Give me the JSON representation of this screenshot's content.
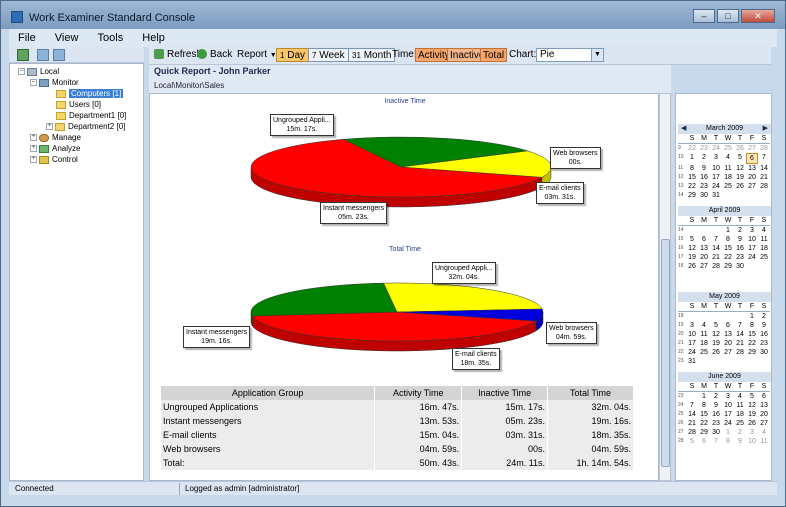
{
  "window": {
    "title": "Work Examiner Standard Console"
  },
  "menu": [
    "File",
    "View",
    "Tools",
    "Help"
  ],
  "tree": {
    "local": "Local",
    "monitor": "Monitor",
    "computers": "Computers [1]",
    "users": "Users [0]",
    "department1": "Department1 [0]",
    "department2": "Department2 [0]",
    "manage": "Manage",
    "analyze": "Analyze",
    "control": "Control"
  },
  "toolbar": {
    "refresh": "Refresh",
    "back": "Back",
    "report": "Report",
    "day": "Day",
    "week": "Week",
    "month": "Month",
    "time_label": "Time:",
    "activity": "Activity",
    "inactive": "Inactive",
    "total": "Total",
    "chart_label": "Chart:",
    "chart_value": "Pie"
  },
  "report": {
    "title": "Quick Report - John Parker",
    "path": "Local\\Monitor\\Sales"
  },
  "chart_data": [
    {
      "type": "pie",
      "title": "Inactive Time",
      "categories": [
        "Ungrouped Applications",
        "Instant messengers",
        "E-mail clients",
        "Web browsers"
      ],
      "values": [
        917,
        323,
        211,
        0
      ],
      "labels": [
        {
          "name": "Ungrouped Appli...",
          "value": "15m. 17s."
        },
        {
          "name": "Instant messengers",
          "value": "05m. 23s."
        },
        {
          "name": "E-mail clients",
          "value": "03m. 31s."
        },
        {
          "name": "Web browsers",
          "value": "00s."
        }
      ],
      "colors": [
        "#ff0000",
        "#008000",
        "#ffff00",
        "#0000dd"
      ]
    },
    {
      "type": "pie",
      "title": "Total Time",
      "categories": [
        "Ungrouped Applications",
        "Instant messengers",
        "E-mail clients",
        "Web browsers"
      ],
      "values": [
        1924,
        1156,
        1115,
        299
      ],
      "labels": [
        {
          "name": "Ungrouped Appli...",
          "value": "32m. 04s."
        },
        {
          "name": "Instant messengers",
          "value": "19m. 16s."
        },
        {
          "name": "E-mail clients",
          "value": "18m. 35s."
        },
        {
          "name": "Web browsers",
          "value": "04m. 59s."
        }
      ],
      "colors": [
        "#ff0000",
        "#008000",
        "#ffff00",
        "#0000dd"
      ]
    }
  ],
  "table": {
    "headers": [
      "Application Group",
      "Activity Time",
      "Inactive Time",
      "Total Time"
    ],
    "rows": [
      [
        "Ungrouped Applications",
        "16m. 47s.",
        "15m. 17s.",
        "32m. 04s."
      ],
      [
        "Instant messengers",
        "13m. 53s.",
        "05m. 23s.",
        "19m. 16s."
      ],
      [
        "E-mail clients",
        "15m. 04s.",
        "03m. 31s.",
        "18m. 35s."
      ],
      [
        "Web browsers",
        "04m. 59s.",
        "00s.",
        "04m. 59s."
      ],
      [
        "Total:",
        "50m. 43s.",
        "24m. 11s.",
        "1h. 14m. 54s."
      ]
    ]
  },
  "calendar": {
    "day_headers": [
      "S",
      "M",
      "T",
      "W",
      "T",
      "F",
      "S"
    ],
    "months": [
      {
        "name": "March 2009",
        "weeks": [
          {
            "wk": "9",
            "days": [
              "22",
              "23",
              "24",
              "25",
              "26",
              "27",
              "28"
            ],
            "gray": [
              0,
              1,
              2,
              3,
              4,
              5,
              6
            ]
          },
          {
            "wk": "10",
            "days": [
              "1",
              "2",
              "3",
              "4",
              "5",
              "6",
              "7"
            ],
            "gray": []
          },
          {
            "wk": "11",
            "days": [
              "8",
              "9",
              "10",
              "11",
              "12",
              "13",
              "14"
            ],
            "gray": []
          },
          {
            "wk": "12",
            "days": [
              "15",
              "16",
              "17",
              "18",
              "19",
              "20",
              "21"
            ],
            "gray": []
          },
          {
            "wk": "13",
            "days": [
              "22",
              "23",
              "24",
              "25",
              "26",
              "27",
              "28"
            ],
            "gray": []
          },
          {
            "wk": "14",
            "days": [
              "29",
              "30",
              "31",
              "",
              "",
              "",
              ""
            ],
            "gray": []
          }
        ],
        "today": "6"
      },
      {
        "name": "April 2009",
        "weeks": [
          {
            "wk": "14",
            "days": [
              "",
              "",
              "",
              "1",
              "2",
              "3",
              "4"
            ],
            "gray": []
          },
          {
            "wk": "15",
            "days": [
              "5",
              "6",
              "7",
              "8",
              "9",
              "10",
              "11"
            ],
            "gray": []
          },
          {
            "wk": "16",
            "days": [
              "12",
              "13",
              "14",
              "15",
              "16",
              "17",
              "18"
            ],
            "gray": []
          },
          {
            "wk": "17",
            "days": [
              "19",
              "20",
              "21",
              "22",
              "23",
              "24",
              "25"
            ],
            "gray": []
          },
          {
            "wk": "18",
            "days": [
              "26",
              "27",
              "28",
              "29",
              "30",
              "",
              ""
            ],
            "gray": []
          }
        ]
      },
      {
        "name": "May 2009",
        "weeks": [
          {
            "wk": "18",
            "days": [
              "",
              "",
              "",
              "",
              "",
              "1",
              "2"
            ],
            "gray": []
          },
          {
            "wk": "19",
            "days": [
              "3",
              "4",
              "5",
              "6",
              "7",
              "8",
              "9"
            ],
            "gray": []
          },
          {
            "wk": "20",
            "days": [
              "10",
              "11",
              "12",
              "13",
              "14",
              "15",
              "16"
            ],
            "gray": []
          },
          {
            "wk": "21",
            "days": [
              "17",
              "18",
              "19",
              "20",
              "21",
              "22",
              "23"
            ],
            "gray": []
          },
          {
            "wk": "22",
            "days": [
              "24",
              "25",
              "26",
              "27",
              "28",
              "29",
              "30"
            ],
            "gray": []
          },
          {
            "wk": "23",
            "days": [
              "31",
              "",
              "",
              "",
              "",
              "",
              ""
            ],
            "gray": []
          }
        ]
      },
      {
        "name": "June 2009",
        "weeks": [
          {
            "wk": "23",
            "days": [
              "",
              "1",
              "2",
              "3",
              "4",
              "5",
              "6"
            ],
            "gray": []
          },
          {
            "wk": "24",
            "days": [
              "7",
              "8",
              "9",
              "10",
              "11",
              "12",
              "13"
            ],
            "gray": []
          },
          {
            "wk": "25",
            "days": [
              "14",
              "15",
              "16",
              "17",
              "18",
              "19",
              "20"
            ],
            "gray": []
          },
          {
            "wk": "26",
            "days": [
              "21",
              "22",
              "23",
              "24",
              "25",
              "26",
              "27"
            ],
            "gray": []
          },
          {
            "wk": "27",
            "days": [
              "28",
              "29",
              "30",
              "1",
              "2",
              "3",
              "4"
            ],
            "gray": [
              3,
              4,
              5,
              6
            ]
          },
          {
            "wk": "28",
            "days": [
              "5",
              "6",
              "7",
              "8",
              "9",
              "10",
              "11"
            ],
            "gray": [
              0,
              1,
              2,
              3,
              4,
              5,
              6
            ]
          }
        ]
      }
    ]
  },
  "status": {
    "connection": "Connected",
    "login": "Logged as admin [administrator]"
  }
}
